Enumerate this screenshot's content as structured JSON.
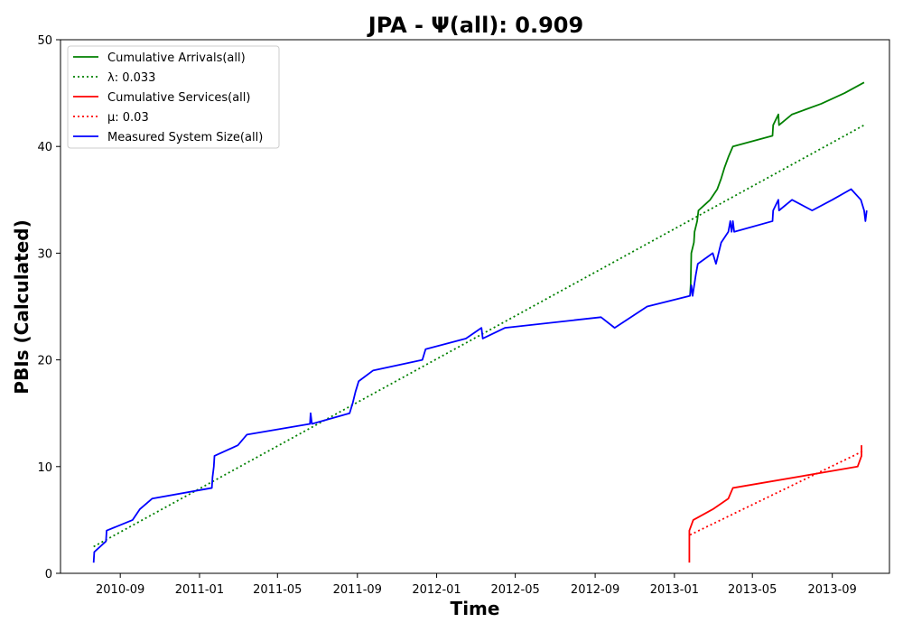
{
  "chart_data": {
    "type": "line",
    "title": "JPA -  Ψ(all): 0.909",
    "xlabel": "Time",
    "ylabel": "PBIs (Calculated)",
    "xlim": [
      "2010-06-01",
      "2013-11-28"
    ],
    "ylim": [
      0,
      50
    ],
    "x_ticks": [
      "2010-09-01",
      "2011-01-01",
      "2011-05-01",
      "2011-09-01",
      "2012-01-01",
      "2012-05-01",
      "2012-09-01",
      "2013-01-01",
      "2013-05-01",
      "2013-09-01"
    ],
    "x_tick_labels": [
      "2010-09",
      "2011-01",
      "2011-05",
      "2011-09",
      "2012-01",
      "2012-05",
      "2012-09",
      "2013-01",
      "2013-05",
      "2013-09"
    ],
    "y_ticks": [
      0,
      10,
      20,
      30,
      40,
      50
    ],
    "grid": false,
    "legend_position": "top-left",
    "series": [
      {
        "name": "Cumulative Arrivals(all)",
        "color": "#008000",
        "style": "solid",
        "points": [
          [
            "2013-01-25",
            26
          ],
          [
            "2013-01-26",
            27
          ],
          [
            "2013-01-27",
            30
          ],
          [
            "2013-01-31",
            31
          ],
          [
            "2013-02-01",
            32
          ],
          [
            "2013-02-05",
            33
          ],
          [
            "2013-02-07",
            34
          ],
          [
            "2013-02-25",
            35
          ],
          [
            "2013-03-08",
            36
          ],
          [
            "2013-03-14",
            37
          ],
          [
            "2013-03-19",
            38
          ],
          [
            "2013-03-25",
            39
          ],
          [
            "2013-04-01",
            40
          ],
          [
            "2013-06-01",
            41
          ],
          [
            "2013-06-02",
            42
          ],
          [
            "2013-06-10",
            43
          ],
          [
            "2013-06-11",
            42
          ],
          [
            "2013-07-01",
            43
          ],
          [
            "2013-08-15",
            44
          ],
          [
            "2013-09-20",
            45
          ],
          [
            "2013-10-20",
            46
          ]
        ]
      },
      {
        "name": "λ: 0.033",
        "color": "#008000",
        "style": "dotted",
        "points": [
          [
            "2010-07-22",
            2.5
          ],
          [
            "2013-10-20",
            42
          ]
        ]
      },
      {
        "name": "Cumulative Services(all)",
        "color": "#ff0000",
        "style": "solid",
        "points": [
          [
            "2013-01-24",
            1
          ],
          [
            "2013-01-24",
            4
          ],
          [
            "2013-01-30",
            5
          ],
          [
            "2013-03-01",
            6
          ],
          [
            "2013-03-25",
            7
          ],
          [
            "2013-04-01",
            8
          ],
          [
            "2013-10-10",
            10
          ],
          [
            "2013-10-16",
            11
          ],
          [
            "2013-10-16",
            12
          ]
        ]
      },
      {
        "name": "μ: 0.03",
        "color": "#ff0000",
        "style": "dotted",
        "points": [
          [
            "2013-01-25",
            3.6
          ],
          [
            "2013-10-20",
            11.5
          ]
        ]
      },
      {
        "name": "Measured System Size(all)",
        "color": "#0000ff",
        "style": "solid",
        "points": [
          [
            "2010-07-22",
            1
          ],
          [
            "2010-07-23",
            2
          ],
          [
            "2010-08-10",
            3
          ],
          [
            "2010-08-11",
            4
          ],
          [
            "2010-09-20",
            5
          ],
          [
            "2010-10-01",
            6
          ],
          [
            "2010-10-20",
            7
          ],
          [
            "2011-01-20",
            8
          ],
          [
            "2011-01-21",
            9
          ],
          [
            "2011-01-23",
            10
          ],
          [
            "2011-01-24",
            11
          ],
          [
            "2011-03-01",
            12
          ],
          [
            "2011-03-15",
            13
          ],
          [
            "2011-06-20",
            14
          ],
          [
            "2011-06-21",
            15
          ],
          [
            "2011-06-23",
            14
          ],
          [
            "2011-08-20",
            15
          ],
          [
            "2011-08-25",
            16
          ],
          [
            "2011-08-29",
            17
          ],
          [
            "2011-09-03",
            18
          ],
          [
            "2011-09-25",
            19
          ],
          [
            "2011-12-10",
            20
          ],
          [
            "2011-12-15",
            21
          ],
          [
            "2012-02-15",
            22
          ],
          [
            "2012-03-10",
            23
          ],
          [
            "2012-03-12",
            22
          ],
          [
            "2012-04-15",
            23
          ],
          [
            "2012-09-10",
            24
          ],
          [
            "2012-10-01",
            23
          ],
          [
            "2012-11-20",
            25
          ],
          [
            "2013-01-25",
            26
          ],
          [
            "2013-01-27",
            27
          ],
          [
            "2013-01-29",
            26
          ],
          [
            "2013-02-03",
            28
          ],
          [
            "2013-02-06",
            29
          ],
          [
            "2013-03-01",
            30
          ],
          [
            "2013-03-06",
            29
          ],
          [
            "2013-03-14",
            31
          ],
          [
            "2013-03-25",
            32
          ],
          [
            "2013-03-28",
            33
          ],
          [
            "2013-03-30",
            32
          ],
          [
            "2013-04-01",
            33
          ],
          [
            "2013-04-03",
            32
          ],
          [
            "2013-06-01",
            33
          ],
          [
            "2013-06-02",
            34
          ],
          [
            "2013-06-10",
            35
          ],
          [
            "2013-06-11",
            34
          ],
          [
            "2013-07-01",
            35
          ],
          [
            "2013-08-01",
            34
          ],
          [
            "2013-09-01",
            35
          ],
          [
            "2013-09-30",
            36
          ],
          [
            "2013-10-15",
            35
          ],
          [
            "2013-10-20",
            34
          ],
          [
            "2013-10-22",
            33
          ],
          [
            "2013-10-24",
            34
          ]
        ]
      }
    ]
  }
}
